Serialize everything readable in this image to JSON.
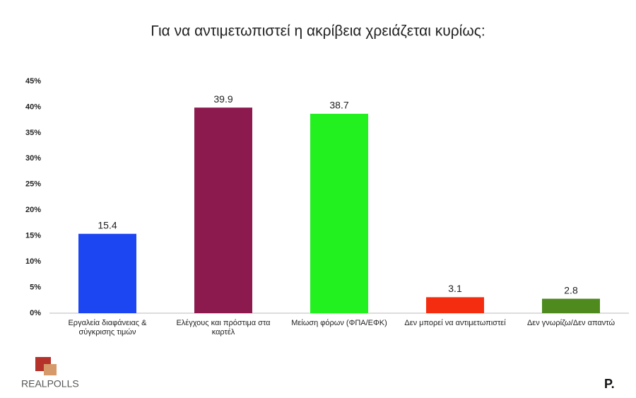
{
  "chart_data": {
    "type": "bar",
    "title": "Για να αντιμετωπιστεί η ακρίβεια χρειάζεται κυρίως:",
    "categories": [
      "Εργαλεία διαφάνειας & σύγκρισης τιμών",
      "Ελέγχους και πρόστιμα στα καρτέλ",
      "Μείωση φόρων (ΦΠΑ/ΕΦΚ)",
      "Δεν μπορεί να αντιμετωπιστεί",
      "Δεν γνωρίζω/Δεν απαντώ"
    ],
    "values": [
      15.4,
      39.9,
      38.7,
      3.1,
      2.8
    ],
    "colors": [
      "#1c46f2",
      "#8c1a4f",
      "#22f01f",
      "#f52d10",
      "#4f8a1f"
    ],
    "ylim": [
      0,
      45
    ],
    "yticks": [
      {
        "value": 0,
        "label": "0%"
      },
      {
        "value": 5,
        "label": "5%"
      },
      {
        "value": 10,
        "label": "10%"
      },
      {
        "value": 15,
        "label": "15%"
      },
      {
        "value": 20,
        "label": "20%"
      },
      {
        "value": 25,
        "label": "25%"
      },
      {
        "value": 30,
        "label": "30%"
      },
      {
        "value": 35,
        "label": "35%"
      },
      {
        "value": 40,
        "label": "40%"
      },
      {
        "value": 45,
        "label": "45%"
      }
    ],
    "grid": false
  },
  "logo": "REALPOLLS",
  "brand": "P."
}
